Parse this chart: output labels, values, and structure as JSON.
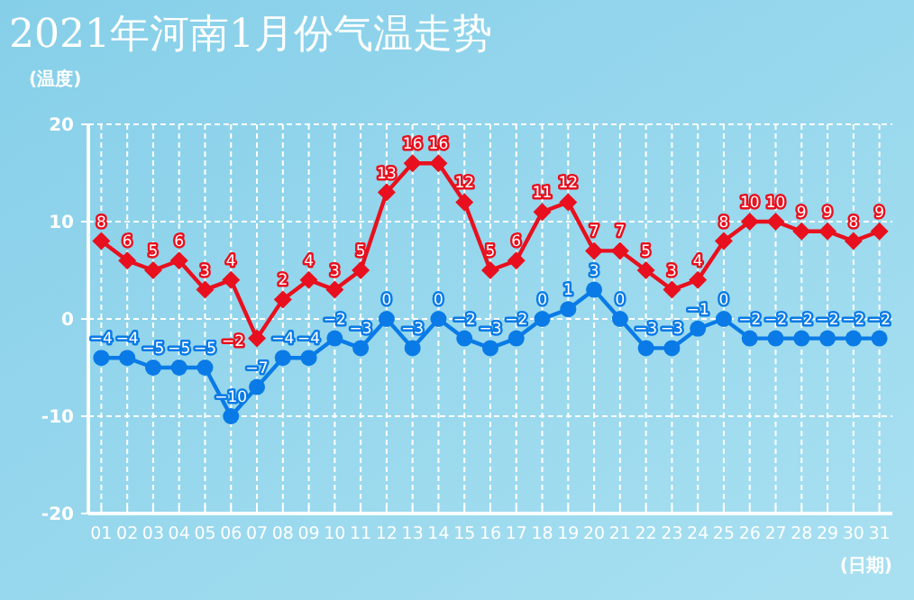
{
  "chart_data": {
    "type": "line",
    "title": "2021年河南1月份气温走势",
    "ylabel": "(温度)",
    "xlabel": "(日期)",
    "categories": [
      "01",
      "02",
      "03",
      "04",
      "05",
      "06",
      "07",
      "08",
      "09",
      "10",
      "11",
      "12",
      "13",
      "14",
      "15",
      "16",
      "17",
      "18",
      "19",
      "20",
      "21",
      "22",
      "23",
      "24",
      "25",
      "26",
      "27",
      "28",
      "29",
      "30",
      "31"
    ],
    "series": [
      {
        "color": "#e8101e",
        "marker": "diamond",
        "values": [
          8,
          6,
          5,
          6,
          3,
          4,
          -2,
          2,
          4,
          3,
          5,
          13,
          16,
          16,
          12,
          5,
          6,
          11,
          12,
          7,
          7,
          5,
          3,
          4,
          8,
          10,
          10,
          9,
          9,
          8,
          9
        ]
      },
      {
        "color": "#0a7be6",
        "marker": "circle",
        "values": [
          -4,
          -4,
          -5,
          -5,
          -5,
          -10,
          -7,
          -4,
          -4,
          -2,
          -3,
          0,
          -3,
          0,
          -2,
          -3,
          -2,
          0,
          1,
          3,
          0,
          -3,
          -3,
          -1,
          0,
          -2,
          -2,
          -2,
          -2,
          -2,
          -2
        ]
      }
    ],
    "ylim": [
      -20,
      20
    ],
    "yticks": [
      -20,
      -10,
      0,
      10,
      20
    ],
    "grid": true,
    "data_labels": true
  }
}
